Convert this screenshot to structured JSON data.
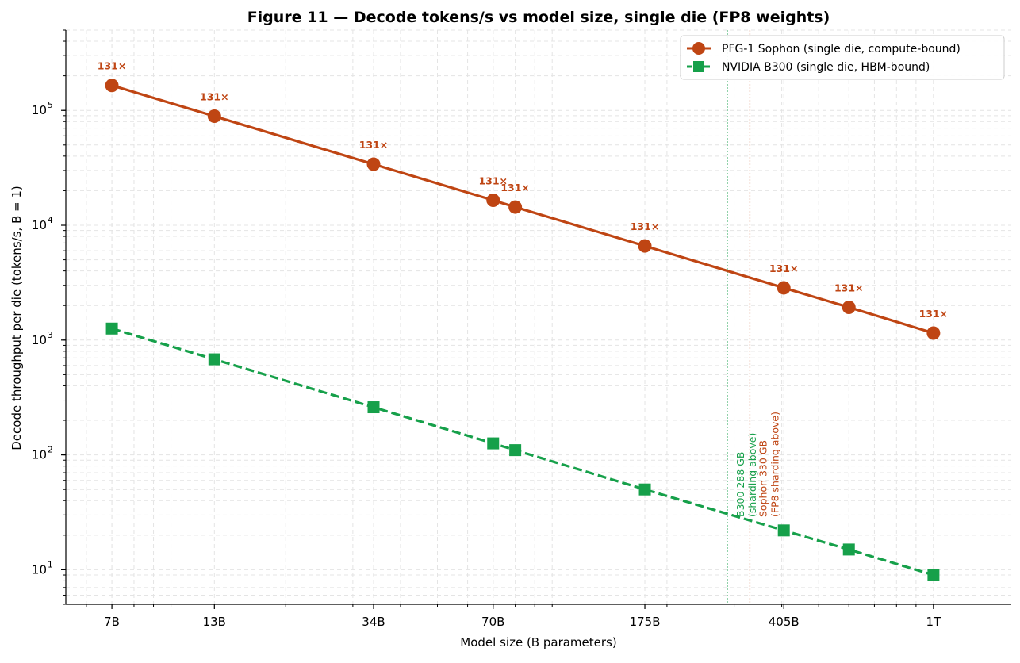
{
  "chart_data": {
    "type": "line",
    "title": "Figure 11 — Decode tokens/s vs model size, single die (FP8 weights)",
    "xlabel": "Model size (B parameters)",
    "ylabel": "Decode throughput per die (tokens/s, B = 1)",
    "xscale": "log",
    "yscale": "log",
    "xlim": [
      5.3,
      1600
    ],
    "ylim": [
      5,
      500000
    ],
    "grid": true,
    "legend_position": "top-right",
    "x_ticks": [
      {
        "value": 7,
        "label": "7B"
      },
      {
        "value": 13,
        "label": "13B"
      },
      {
        "value": 34,
        "label": "34B"
      },
      {
        "value": 70,
        "label": "70B"
      },
      {
        "value": 175,
        "label": "175B"
      },
      {
        "value": 405,
        "label": "405B"
      },
      {
        "value": 1000,
        "label": "1T"
      }
    ],
    "y_ticks": [
      {
        "value": 10,
        "base": "10",
        "exp": "1"
      },
      {
        "value": 100,
        "base": "10",
        "exp": "2"
      },
      {
        "value": 1000,
        "base": "10",
        "exp": "3"
      },
      {
        "value": 10000,
        "base": "10",
        "exp": "4"
      },
      {
        "value": 100000,
        "base": "10",
        "exp": "5"
      }
    ],
    "series": [
      {
        "name": "PFG-1 Sophon (single die, compute-bound)",
        "color": "#bf4513",
        "marker": "circle",
        "linestyle": "solid",
        "x": [
          7,
          13,
          34,
          70,
          80,
          175,
          405,
          600,
          1000
        ],
        "y": [
          165000,
          89000,
          34000,
          16500,
          14400,
          6600,
          2850,
          1930,
          1150
        ]
      },
      {
        "name": "NVIDIA B300 (single die, HBM-bound)",
        "color": "#16a04a",
        "marker": "square",
        "linestyle": "dashed",
        "x": [
          7,
          13,
          34,
          70,
          80,
          175,
          405,
          600,
          1000
        ],
        "y": [
          1260,
          680,
          260,
          126,
          110,
          50,
          22,
          15,
          9
        ]
      }
    ],
    "ratio_labels": {
      "color": "#bf4513",
      "x": [
        7,
        13,
        34,
        70,
        80,
        175,
        405,
        600,
        1000
      ],
      "text": [
        "131×",
        "131×",
        "131×",
        "131×",
        "131×",
        "131×",
        "131×",
        "131×",
        "131×"
      ]
    },
    "vlines": [
      {
        "x": 288,
        "color": "#16a04a",
        "line1": "B300 288 GB",
        "line2": "(sharding above)"
      },
      {
        "x": 330,
        "color": "#bf4513",
        "line1": "Sophon 330 GB",
        "line2": "(FP8 sharding above)"
      }
    ]
  }
}
